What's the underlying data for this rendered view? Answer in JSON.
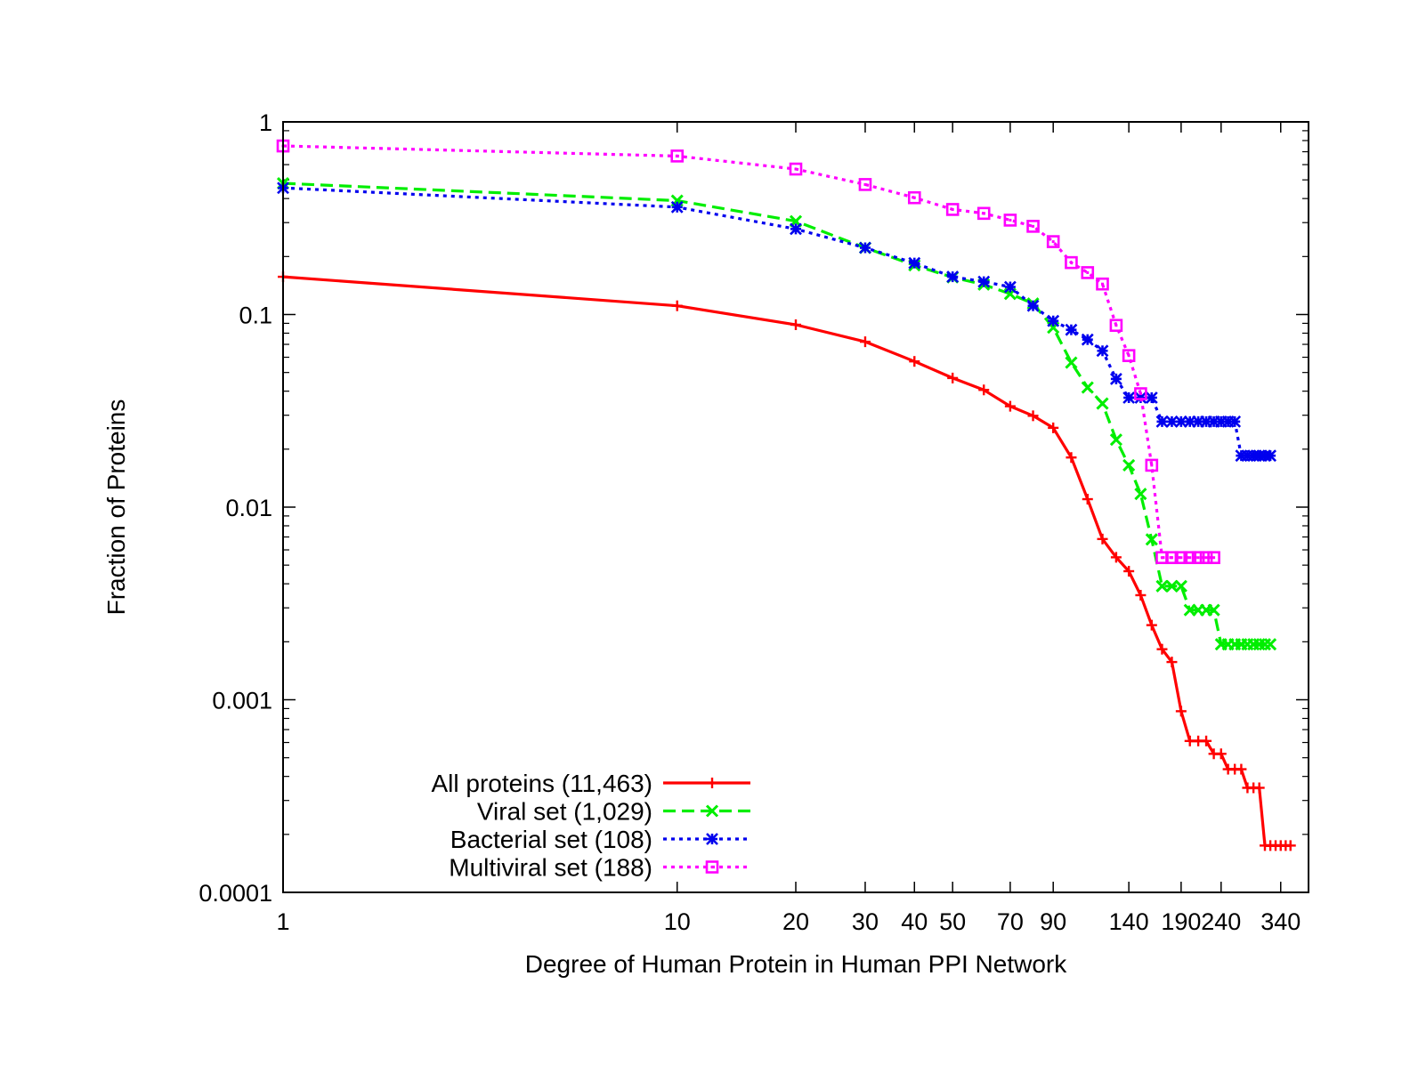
{
  "chart_data": {
    "type": "line",
    "xlabel": "Degree of Human Protein in Human PPI Network",
    "ylabel": "Fraction of Proteins",
    "x_scale": "log",
    "y_scale": "log",
    "xlim": [
      1,
      400
    ],
    "ylim": [
      0.0001,
      1
    ],
    "x_ticks": [
      1,
      10,
      20,
      30,
      40,
      50,
      70,
      90,
      140,
      190,
      240,
      340
    ],
    "x_tick_labels": [
      "1",
      "10",
      "20",
      "30",
      "40",
      "50",
      "70",
      "90",
      "140",
      "190",
      "240",
      "340"
    ],
    "y_ticks": [
      0.0001,
      0.001,
      0.01,
      0.1,
      1
    ],
    "y_tick_labels": [
      "0.0001",
      "0.001",
      "0.01",
      "0.1",
      "1"
    ],
    "legend_position": "bottom-left",
    "series": [
      {
        "name": "All proteins (11,463)",
        "color": "#ff0000",
        "marker": "plus",
        "dash": "solid",
        "x": [
          1,
          10,
          20,
          30,
          40,
          50,
          60,
          70,
          80,
          90,
          100,
          110,
          120,
          130,
          140,
          150,
          160,
          170,
          180,
          190,
          200,
          210,
          220,
          230,
          240,
          250,
          260,
          270,
          280,
          290,
          300,
          310,
          320,
          330,
          340,
          350,
          360
        ],
        "y": [
          0.157,
          0.111,
          0.0885,
          0.0722,
          0.0571,
          0.0468,
          0.0406,
          0.0334,
          0.0298,
          0.0258,
          0.0181,
          0.011,
          0.00683,
          0.00549,
          0.00465,
          0.00349,
          0.00244,
          0.00183,
          0.00157,
          0.000872,
          0.000611,
          0.000611,
          0.000611,
          0.000524,
          0.000524,
          0.000436,
          0.000436,
          0.000436,
          0.000349,
          0.000349,
          0.000349,
          0.000175,
          0.000175,
          0.000175,
          0.000175,
          0.000175,
          0.000175
        ]
      },
      {
        "name": "Viral set (1,029)",
        "color": "#00ee00",
        "marker": "x",
        "dash": "dashed",
        "x": [
          1,
          10,
          20,
          30,
          40,
          50,
          60,
          70,
          80,
          90,
          100,
          110,
          120,
          130,
          140,
          150,
          160,
          170,
          180,
          190,
          200,
          210,
          220,
          230,
          240,
          250,
          260,
          270,
          280,
          290,
          300,
          310,
          320
        ],
        "y": [
          0.48,
          0.39,
          0.305,
          0.222,
          0.18,
          0.156,
          0.143,
          0.128,
          0.114,
          0.0855,
          0.0563,
          0.0418,
          0.0345,
          0.0224,
          0.0165,
          0.0117,
          0.0068,
          0.00389,
          0.00389,
          0.00389,
          0.00292,
          0.00292,
          0.00292,
          0.00292,
          0.00194,
          0.00194,
          0.00194,
          0.00194,
          0.00194,
          0.00194,
          0.00194,
          0.00194,
          0.00194
        ]
      },
      {
        "name": "Bacterial set (108)",
        "color": "#0000ee",
        "marker": "star",
        "dash": "dotted",
        "x": [
          1,
          10,
          20,
          30,
          40,
          50,
          60,
          70,
          80,
          90,
          100,
          110,
          120,
          130,
          140,
          150,
          160,
          170,
          180,
          190,
          200,
          210,
          220,
          230,
          240,
          250,
          260,
          270,
          280,
          290,
          300,
          310,
          320
        ],
        "y": [
          0.454,
          0.361,
          0.278,
          0.222,
          0.185,
          0.157,
          0.148,
          0.139,
          0.111,
          0.0926,
          0.0833,
          0.0741,
          0.0648,
          0.0463,
          0.037,
          0.037,
          0.037,
          0.0278,
          0.0278,
          0.0278,
          0.0278,
          0.0278,
          0.0278,
          0.0278,
          0.0278,
          0.0278,
          0.0278,
          0.0185,
          0.0185,
          0.0185,
          0.0185,
          0.0185,
          0.0185
        ]
      },
      {
        "name": "Multiviral set (188)",
        "color": "#ff00ff",
        "marker": "square",
        "dash": "dotted",
        "x": [
          1,
          10,
          20,
          30,
          40,
          50,
          60,
          70,
          80,
          90,
          100,
          110,
          120,
          130,
          140,
          150,
          160,
          170,
          180,
          190,
          200,
          210,
          220,
          230
        ],
        "y": [
          0.75,
          0.665,
          0.569,
          0.473,
          0.404,
          0.351,
          0.335,
          0.309,
          0.287,
          0.239,
          0.186,
          0.165,
          0.144,
          0.0878,
          0.0612,
          0.0388,
          0.0165,
          0.00547,
          0.00547,
          0.00547,
          0.00547,
          0.00547,
          0.00547,
          0.00547
        ]
      }
    ]
  }
}
